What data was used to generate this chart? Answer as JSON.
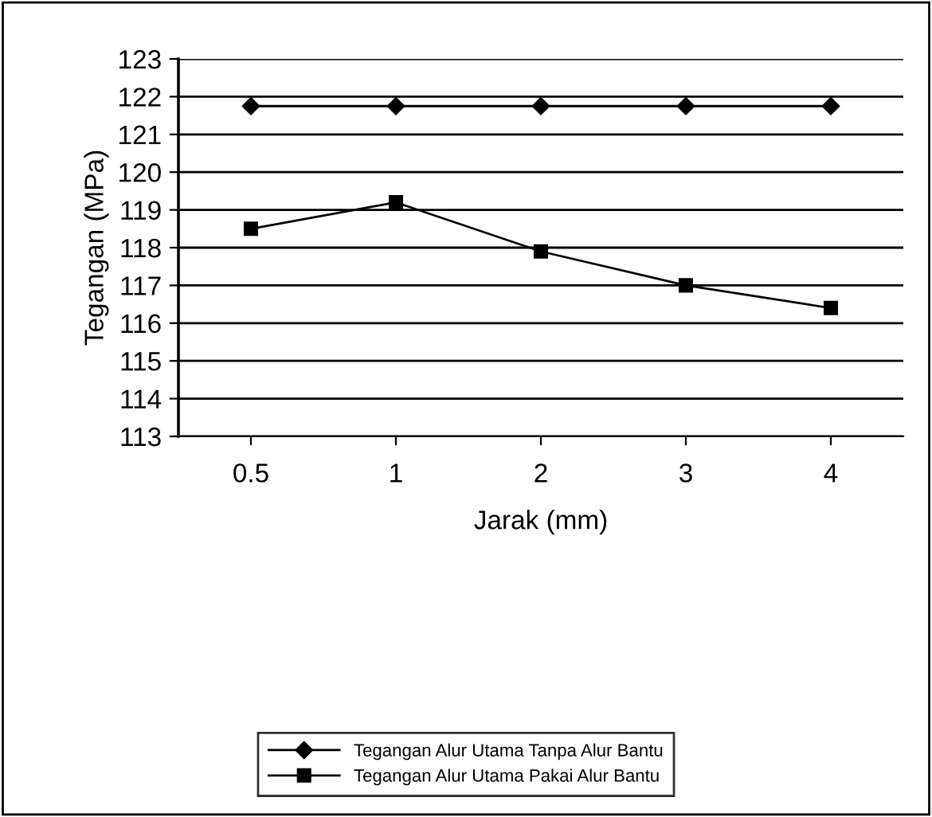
{
  "chart_data": {
    "type": "line",
    "xlabel": "Jarak (mm)",
    "ylabel": "Tegangan (MPa)",
    "categories": [
      "0.5",
      "1",
      "2",
      "3",
      "4"
    ],
    "series": [
      {
        "name": "Tegangan Alur Utama Tanpa Alur Bantu",
        "color": "#000000",
        "marker": "diamond",
        "values": [
          121.75,
          121.75,
          121.75,
          121.75,
          121.75
        ]
      },
      {
        "name": "Tegangan Alur Utama Pakai Alur Bantu",
        "color": "#000000",
        "marker": "square",
        "values": [
          118.5,
          119.2,
          117.9,
          117.0,
          116.4
        ]
      }
    ],
    "ylim": [
      113,
      123
    ],
    "yticks": [
      113,
      114,
      115,
      116,
      117,
      118,
      119,
      120,
      121,
      122,
      123
    ],
    "grid": "y",
    "legend": "bottom",
    "line_style": "solid"
  }
}
